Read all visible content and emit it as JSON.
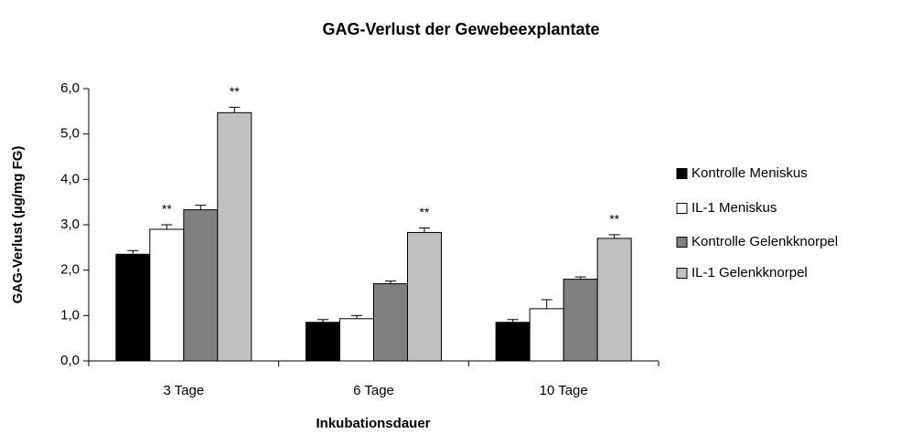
{
  "chart_data": {
    "type": "bar",
    "title": "GAG-Verlust der Gewebeexplantate",
    "x_label": "Inkubationsdauer",
    "y_label": "GAG-Verlust (µg/mg FG)",
    "categories": [
      "3 Tage",
      "6 Tage",
      "10 Tage"
    ],
    "series": [
      {
        "name": "Kontrolle Meniskus",
        "color": "#000000",
        "values": [
          2.35,
          0.85,
          0.85
        ],
        "errors": [
          0.08,
          0.06,
          0.06
        ],
        "annotations": [
          null,
          null,
          null
        ]
      },
      {
        "name": "IL-1 Meniskus",
        "color": "#ffffff",
        "values": [
          2.9,
          0.93,
          1.15
        ],
        "errors": [
          0.1,
          0.07,
          0.2
        ],
        "annotations": [
          "**",
          null,
          null
        ]
      },
      {
        "name": "Kontrolle Gelenkknorpel",
        "color": "#808080",
        "values": [
          3.33,
          1.7,
          1.8
        ],
        "errors": [
          0.1,
          0.06,
          0.05
        ],
        "annotations": [
          null,
          null,
          null
        ]
      },
      {
        "name": "IL-1 Gelenkknorpel",
        "color": "#c0c0c0",
        "values": [
          5.47,
          2.83,
          2.7
        ],
        "errors": [
          0.12,
          0.1,
          0.08
        ],
        "annotations": [
          "**",
          "**",
          "**"
        ]
      }
    ],
    "ylim": [
      0,
      6
    ],
    "yticks": [
      {
        "value": 0,
        "label": "0,0"
      },
      {
        "value": 1,
        "label": "1,0"
      },
      {
        "value": 2,
        "label": "2,0"
      },
      {
        "value": 3,
        "label": "3,0"
      },
      {
        "value": 4,
        "label": "4,0"
      },
      {
        "value": 5,
        "label": "5,0"
      },
      {
        "value": 6,
        "label": "6,0"
      }
    ],
    "grid": false,
    "legend": "right"
  }
}
